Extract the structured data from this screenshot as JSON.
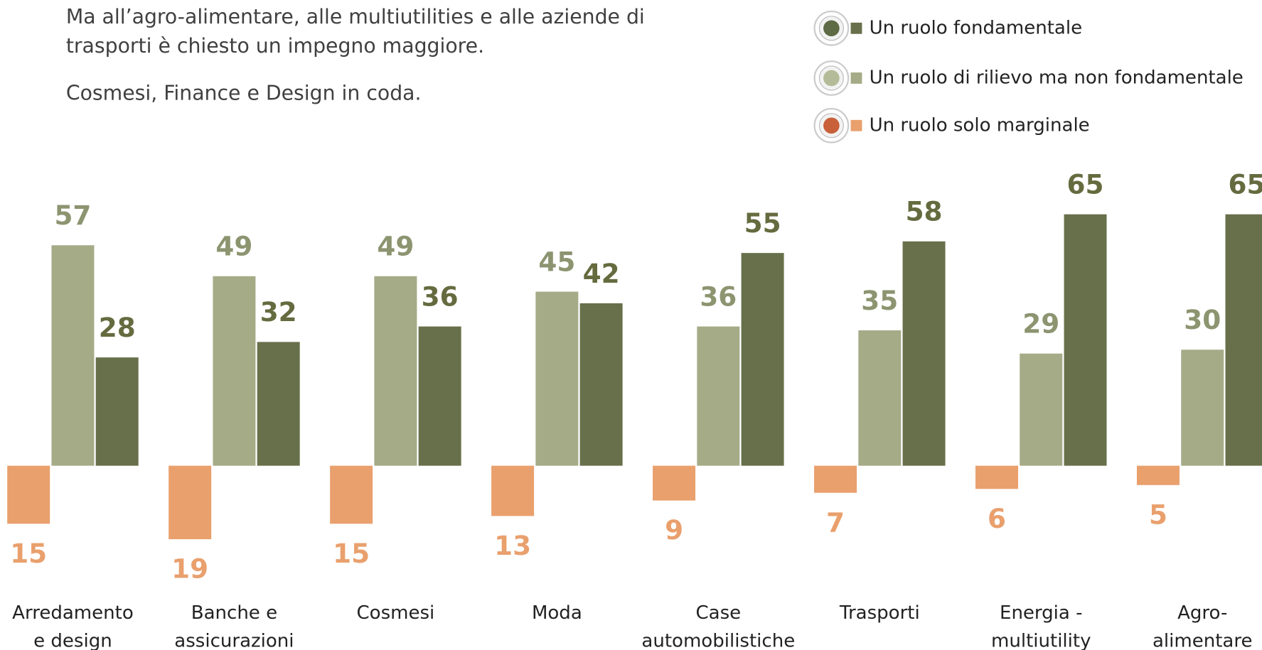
{
  "chart_data": {
    "type": "bar",
    "text": [
      "Ma all’agro-alimentare, alle multiutilities e alle aziende di",
      "trasporti è chiesto un impegno maggiore."
    ],
    "subtext": "Cosmesi, Finance e Design in coda.",
    "categories": [
      [
        "Arredamento",
        "e design"
      ],
      [
        "Banche e",
        "assicurazioni"
      ],
      [
        "Cosmesi"
      ],
      [
        "Moda"
      ],
      [
        "Case",
        "automobilistiche"
      ],
      [
        "Trasporti"
      ],
      [
        "Energia -",
        "multiutility"
      ],
      [
        "Agro-",
        "alimentare"
      ]
    ],
    "series": [
      {
        "name": "Un ruolo fondamentale",
        "color": "#67704a",
        "label_color": "#656b3f",
        "icon_color": "#5e6b45",
        "values": [
          28,
          32,
          36,
          42,
          55,
          58,
          65,
          65
        ]
      },
      {
        "name": "Un ruolo di rilievo ma non fondamentale",
        "color": "#a6ab87",
        "label_color": "#8c9470",
        "icon_color": "#b4bb98",
        "values": [
          57,
          49,
          49,
          45,
          36,
          35,
          29,
          30
        ]
      },
      {
        "name": "Un ruolo solo marginale",
        "color": "#e9a06d",
        "label_color": "#e9a06d",
        "icon_color": "#c8603a",
        "values": [
          -15,
          -19,
          -15,
          -13,
          -9,
          -7,
          -6,
          -5
        ],
        "value_labels": [
          "15",
          "19",
          "15",
          "13",
          "9",
          "7",
          "6",
          "5"
        ]
      }
    ]
  }
}
